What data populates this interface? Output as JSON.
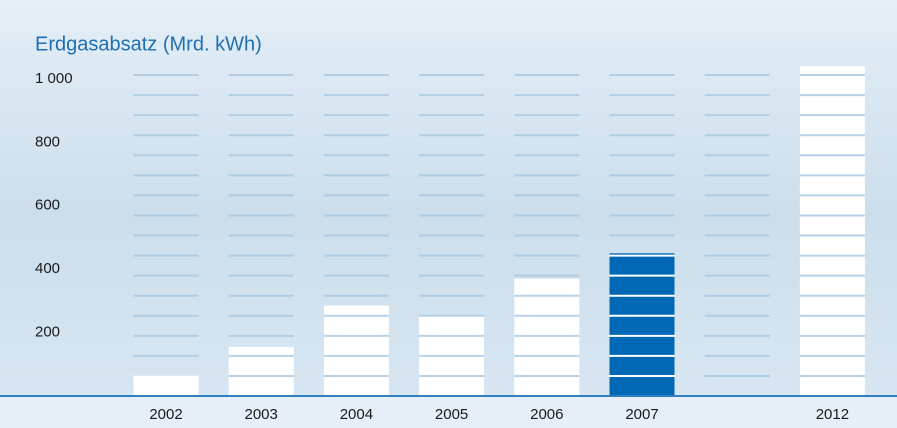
{
  "chart_data": {
    "type": "bar",
    "title": "Erdgasabsatz (Mrd. kWh)",
    "categories": [
      "2002",
      "2003",
      "2004",
      "2005",
      "2006",
      "2007",
      null,
      "2012"
    ],
    "values": [
      65,
      155,
      285,
      250,
      370,
      450,
      null,
      1040
    ],
    "colors": [
      "#ffffff",
      "#ffffff",
      "#ffffff",
      "#ffffff",
      "#ffffff",
      "#0068b4",
      "#ffffff",
      "#ffffff"
    ],
    "ylim": [
      0,
      1050
    ],
    "yticks": [
      200,
      400,
      600,
      800,
      {
        "value": 1000,
        "label": "1 000"
      }
    ],
    "grid": false
  }
}
